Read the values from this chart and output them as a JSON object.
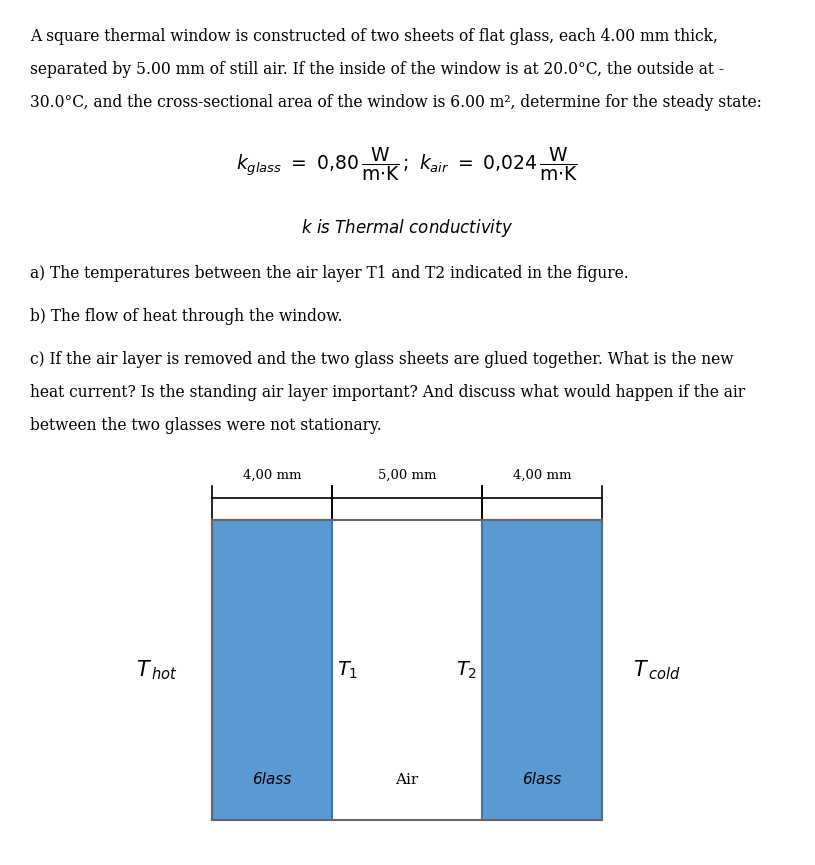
{
  "background_color": "#ffffff",
  "fig_width": 8.15,
  "fig_height": 8.65,
  "glass_color": "#5B9BD5",
  "glass_edge_color": "#4472A8",
  "text_lines": [
    "A square thermal window is constructed of two sheets of flat glass, each 4.00 mm thick,",
    "separated by 5.00 mm of still air. If the inside of the window is at 20.0°C, the outside at -",
    "30.0°C, and the cross-sectional area of the window is 6.00 m², determine for the steady state:"
  ],
  "question_a": "a) The temperatures between the air layer T1 and T2 indicated in the figure.",
  "question_b": "b) The flow of heat through the window.",
  "question_c": [
    "c) If the air layer is removed and the two glass sheets are glued together. What is the new",
    "heat current? Is the standing air layer important? And discuss what would happen if the air",
    "between the two glasses were not stationary."
  ],
  "dim_labels": [
    "4,00 mm",
    "5,00 mm",
    "4,00 mm"
  ],
  "glass_label": "Glass",
  "air_label": "Air",
  "T_hot": "T hot",
  "T1": "T₁",
  "T2": "T₂",
  "T_cold": "T cold"
}
